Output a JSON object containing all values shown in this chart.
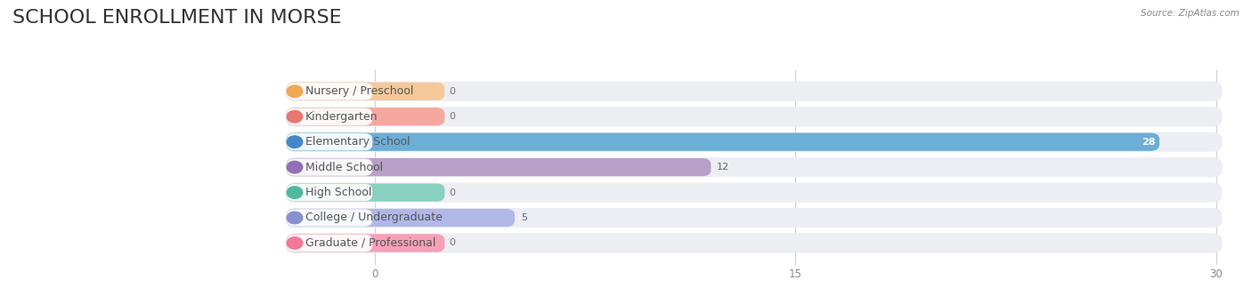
{
  "title": "SCHOOL ENROLLMENT IN MORSE",
  "source": "Source: ZipAtlas.com",
  "categories": [
    "Nursery / Preschool",
    "Kindergarten",
    "Elementary School",
    "Middle School",
    "High School",
    "College / Undergraduate",
    "Graduate / Professional"
  ],
  "values": [
    0,
    0,
    28,
    12,
    0,
    5,
    0
  ],
  "bar_colors": [
    "#f5c89a",
    "#f5a8a0",
    "#6baed6",
    "#b8a0c8",
    "#88d0c0",
    "#b0b8e8",
    "#f5a0b8"
  ],
  "circle_colors": [
    "#f0a855",
    "#e87870",
    "#4488c8",
    "#9070b8",
    "#50b8a0",
    "#8890d0",
    "#f07898"
  ],
  "xlim": [
    0,
    30
  ],
  "xticks": [
    0,
    15,
    30
  ],
  "title_fontsize": 16,
  "label_fontsize": 9,
  "value_fontsize": 8,
  "background_color": "#ffffff",
  "row_bg_color": "#ededf4"
}
